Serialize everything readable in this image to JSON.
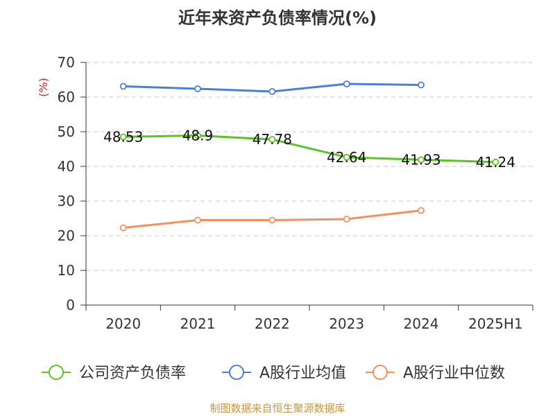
{
  "chart_data": {
    "type": "line",
    "title": "近年来资产负债率情况(%)",
    "xlabel": "",
    "ylabel": "(%)",
    "categories": [
      "2020",
      "2021",
      "2022",
      "2023",
      "2024",
      "2025H1"
    ],
    "ylim": [
      0,
      70
    ],
    "yticks": [
      0,
      10,
      20,
      30,
      40,
      50,
      60,
      70
    ],
    "grid": true,
    "legend_position": "bottom",
    "series": [
      {
        "name": "公司资产负债率",
        "color": "#5bc423",
        "values": [
          48.53,
          48.9,
          47.78,
          42.64,
          41.93,
          41.24
        ],
        "labels": [
          "48.53",
          "48.9",
          "47.78",
          "42.64",
          "41.93",
          "41.24"
        ]
      },
      {
        "name": "A股行业均值",
        "color": "#4a7fd8",
        "values": [
          63.1,
          62.4,
          61.6,
          63.8,
          63.5,
          null
        ]
      },
      {
        "name": "A股行业中位数",
        "color": "#f4905a",
        "values": [
          22.3,
          24.5,
          24.5,
          24.8,
          27.3,
          null
        ]
      }
    ]
  },
  "source": "制图数据来自恒生聚源数据库"
}
